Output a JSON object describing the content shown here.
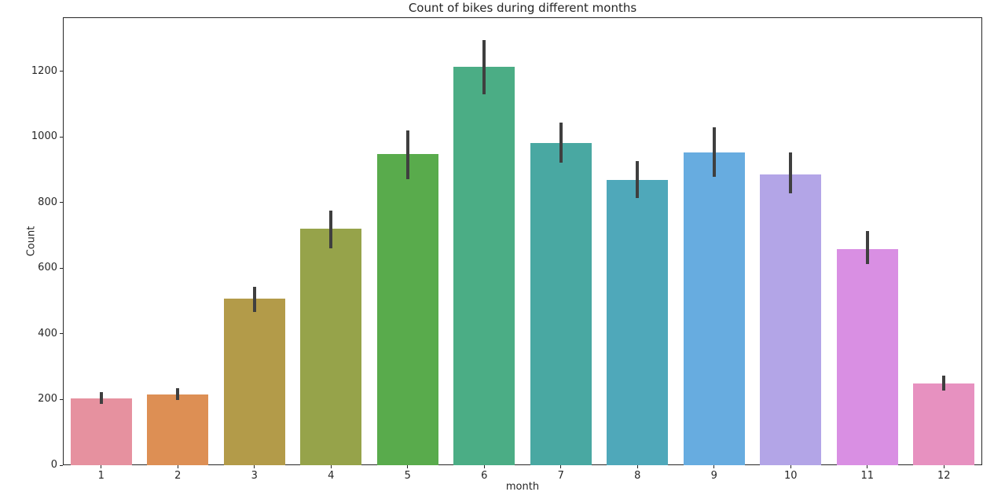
{
  "chart_data": {
    "type": "bar",
    "title": "Count of bikes during different months",
    "xlabel": "month",
    "ylabel": "Count",
    "categories": [
      "1",
      "2",
      "3",
      "4",
      "5",
      "6",
      "7",
      "8",
      "9",
      "10",
      "11",
      "12"
    ],
    "values": [
      204,
      216,
      508,
      721,
      948,
      1215,
      982,
      870,
      954,
      887,
      659,
      250
    ],
    "error_bars": {
      "low": [
        186,
        198,
        467,
        660,
        871,
        1130,
        923,
        814,
        880,
        828,
        612,
        227
      ],
      "high": [
        222,
        234,
        544,
        776,
        1019,
        1295,
        1045,
        927,
        1029,
        953,
        713,
        272
      ]
    },
    "yticks": [
      0,
      200,
      400,
      600,
      800,
      1000,
      1200
    ],
    "ylim": [
      0,
      1365
    ],
    "bar_width_fraction": 0.8,
    "grid": false,
    "legend_position": "none",
    "palette": [
      "#e6919f",
      "#dd8f54",
      "#b39b49",
      "#96a34a",
      "#59ab4c",
      "#4bad85",
      "#49a8a2",
      "#4fa8ba",
      "#67ace0",
      "#b3a5e7",
      "#d98fe3",
      "#e791c0"
    ],
    "error_bar_color": "#3f3f3f",
    "axis_color": "#262626",
    "background_color": "#ffffff"
  }
}
